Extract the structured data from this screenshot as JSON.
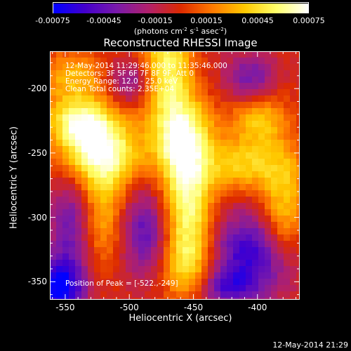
{
  "chart_data": {
    "type": "heatmap",
    "title": "Reconstructed RHESSI Image",
    "xlabel": "Heliocentric X (arcsec)",
    "ylabel": "Heliocentric Y (arcsec)",
    "xlim": [
      -562,
      -367
    ],
    "ylim": [
      -364,
      -171
    ],
    "x_ticks": [
      "-550",
      "-500",
      "-450",
      "-400"
    ],
    "x_tick_values": [
      -550,
      -500,
      -450,
      -400
    ],
    "y_ticks": [
      "-200",
      "-250",
      "-300",
      "-350"
    ],
    "y_tick_values": [
      -200,
      -250,
      -300,
      -350
    ],
    "colorbar": {
      "ticks": [
        "-0.00075",
        "-0.00045",
        "-0.00015",
        "0.00015",
        "0.00045",
        "0.00075"
      ],
      "tick_values": [
        -0.00075,
        -0.00045,
        -0.00015,
        0.00015,
        0.00045,
        0.00075
      ],
      "unit_text": "(photons cm",
      "unit_exp1": "-2",
      "unit_mid": " s",
      "unit_exp2": "-1",
      "unit_end": " asec",
      "unit_exp3": "-2",
      "unit_close": ")",
      "colormap": [
        "#0000ff",
        "#4400cc",
        "#7a1aaa",
        "#b2206a",
        "#dd2a00",
        "#ff7a00",
        "#ffc800",
        "#ffff6a",
        "#ffffff"
      ]
    },
    "annotations": {
      "time": "12-May-2014 11:29:46.000 to 11:35:46.000",
      "detectors": "Detectors: 3F 5F 6F 7F 8F 9F, Att 0",
      "energy": "Energy Range: 12.0 - 25.0 keV",
      "clean": "Clean    Total counts: 2.35E+04",
      "peak": "Position of Peak = [-522.,-249]"
    },
    "peak": [
      -522,
      -249
    ],
    "blobs": [
      {
        "x": -522,
        "y": -249,
        "amp": 1.0,
        "sx": 22,
        "sy": 20
      },
      {
        "x": -540,
        "y": -225,
        "amp": 0.75,
        "sx": 18,
        "sy": 14
      },
      {
        "x": -470,
        "y": -182,
        "amp": 0.8,
        "sx": 14,
        "sy": 30
      },
      {
        "x": -458,
        "y": -238,
        "amp": 0.95,
        "sx": 16,
        "sy": 22
      },
      {
        "x": -455,
        "y": -285,
        "amp": 0.85,
        "sx": 14,
        "sy": 28
      },
      {
        "x": -455,
        "y": -335,
        "amp": 0.7,
        "sx": 14,
        "sy": 22
      },
      {
        "x": -520,
        "y": -300,
        "amp": 0.55,
        "sx": 14,
        "sy": 28
      },
      {
        "x": -400,
        "y": -222,
        "amp": 0.6,
        "sx": 16,
        "sy": 18
      },
      {
        "x": -380,
        "y": -270,
        "amp": 0.55,
        "sx": 14,
        "sy": 22
      },
      {
        "x": -415,
        "y": -260,
        "amp": 0.55,
        "sx": 18,
        "sy": 14
      },
      {
        "x": -380,
        "y": -310,
        "amp": 0.45,
        "sx": 12,
        "sy": 18
      },
      {
        "x": -545,
        "y": -190,
        "amp": 0.5,
        "sx": 20,
        "sy": 14
      },
      {
        "x": -545,
        "y": -305,
        "amp": -0.55,
        "sx": 12,
        "sy": 28
      },
      {
        "x": -488,
        "y": -310,
        "amp": -0.6,
        "sx": 16,
        "sy": 24
      },
      {
        "x": -500,
        "y": -195,
        "amp": -0.45,
        "sx": 12,
        "sy": 12
      },
      {
        "x": -405,
        "y": -195,
        "amp": -0.6,
        "sx": 14,
        "sy": 14
      },
      {
        "x": -405,
        "y": -328,
        "amp": -0.75,
        "sx": 22,
        "sy": 22
      },
      {
        "x": -555,
        "y": -355,
        "amp": -0.95,
        "sx": 14,
        "sy": 16
      },
      {
        "x": -425,
        "y": -355,
        "amp": -0.5,
        "sx": 16,
        "sy": 10
      }
    ]
  },
  "footer": {
    "date": "12-May-2014 21:29"
  }
}
